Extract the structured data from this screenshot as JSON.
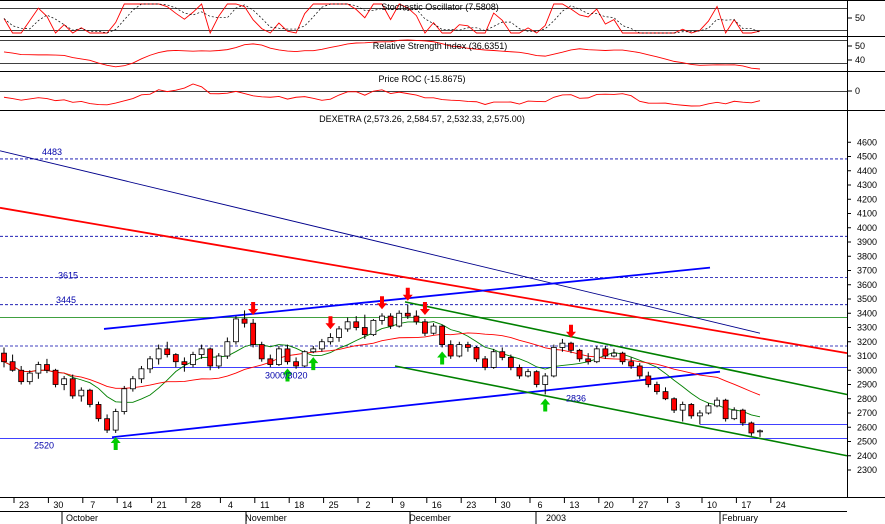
{
  "chart_data": {
    "type": "candlestick",
    "panels": [
      {
        "id": "stoch",
        "title": "Stochastic Oscillator (7.5808)",
        "yticks": [
          {
            "v": 50,
            "label": "50"
          }
        ]
      },
      {
        "id": "rsi",
        "title": "Relative Strength Index (36.6351)",
        "yticks": [
          {
            "v": 50,
            "label": "50"
          },
          {
            "v": 40,
            "label": "40"
          }
        ]
      },
      {
        "id": "roc",
        "title": "Price ROC (-15.8675)",
        "yticks": [
          {
            "v": 0,
            "label": "0"
          }
        ]
      },
      {
        "id": "price",
        "title": "DEXETRA (2,573.26, 2,584.57, 2,532.33, 2,575.00)",
        "ylim": [
          2300,
          4700
        ],
        "yticks": [
          {
            "v": 4600,
            "label": "4600"
          },
          {
            "v": 4500,
            "label": "4500"
          },
          {
            "v": 4400,
            "label": "4400"
          },
          {
            "v": 4300,
            "label": "4300"
          },
          {
            "v": 4200,
            "label": "4200"
          },
          {
            "v": 4100,
            "label": "4100"
          },
          {
            "v": 4000,
            "label": "4000"
          },
          {
            "v": 3900,
            "label": "3900"
          },
          {
            "v": 3800,
            "label": "3800"
          },
          {
            "v": 3700,
            "label": "3700"
          },
          {
            "v": 3600,
            "label": "3600"
          },
          {
            "v": 3500,
            "label": "3500"
          },
          {
            "v": 3400,
            "label": "3400"
          },
          {
            "v": 3300,
            "label": "3300"
          },
          {
            "v": 3200,
            "label": "3200"
          },
          {
            "v": 3100,
            "label": "3100"
          },
          {
            "v": 3000,
            "label": "3000"
          },
          {
            "v": 2900,
            "label": "2900"
          },
          {
            "v": 2800,
            "label": "2800"
          },
          {
            "v": 2700,
            "label": "2700"
          },
          {
            "v": 2600,
            "label": "2600"
          },
          {
            "v": 2500,
            "label": "2500"
          },
          {
            "v": 2400,
            "label": "2400"
          },
          {
            "v": 2300,
            "label": "2300"
          }
        ],
        "level_labels": [
          {
            "label": "4483",
            "v": 4483
          },
          {
            "label": "3615",
            "v": 3615
          },
          {
            "label": "3445",
            "v": 3445
          },
          {
            "label": "3000/3020",
            "v": 3000
          },
          {
            "label": "2836",
            "v": 2836
          },
          {
            "label": "2520",
            "v": 2520
          }
        ]
      }
    ],
    "x_day_ticks": [
      "23",
      "30",
      "7",
      "14",
      "21",
      "28",
      "4",
      "11",
      "18",
      "25",
      "2",
      "9",
      "16",
      "23",
      "30",
      "6",
      "13",
      "20",
      "27",
      "3",
      "10",
      "17",
      "24"
    ],
    "x_month_labels": [
      "October",
      "November",
      "December",
      "2003",
      "February"
    ],
    "candles": [
      [
        3120,
        3160,
        3020,
        3060
      ],
      [
        3060,
        3110,
        2990,
        3000
      ],
      [
        3000,
        3030,
        2900,
        2920
      ],
      [
        2920,
        3000,
        2900,
        2980
      ],
      [
        2980,
        3060,
        2940,
        3040
      ],
      [
        3040,
        3080,
        2980,
        3000
      ],
      [
        3000,
        3010,
        2880,
        2900
      ],
      [
        2900,
        2960,
        2860,
        2940
      ],
      [
        2940,
        2970,
        2800,
        2820
      ],
      [
        2820,
        2880,
        2780,
        2860
      ],
      [
        2860,
        2870,
        2740,
        2760
      ],
      [
        2760,
        2780,
        2640,
        2660
      ],
      [
        2660,
        2690,
        2560,
        2580
      ],
      [
        2580,
        2730,
        2560,
        2710
      ],
      [
        2710,
        2890,
        2690,
        2870
      ],
      [
        2870,
        2960,
        2850,
        2940
      ],
      [
        2940,
        3030,
        2910,
        3010
      ],
      [
        3010,
        3100,
        2980,
        3080
      ],
      [
        3080,
        3180,
        3040,
        3150
      ],
      [
        3150,
        3200,
        3090,
        3110
      ],
      [
        3110,
        3120,
        3020,
        3060
      ],
      [
        3060,
        3090,
        2990,
        3040
      ],
      [
        3040,
        3130,
        3020,
        3110
      ],
      [
        3110,
        3180,
        3080,
        3150
      ],
      [
        3150,
        3160,
        3000,
        3030
      ],
      [
        3030,
        3120,
        3010,
        3100
      ],
      [
        3100,
        3230,
        3080,
        3200
      ],
      [
        3200,
        3380,
        3180,
        3360
      ],
      [
        3360,
        3420,
        3300,
        3330
      ],
      [
        3330,
        3360,
        3160,
        3180
      ],
      [
        3180,
        3200,
        3060,
        3080
      ],
      [
        3080,
        3110,
        3020,
        3040
      ],
      [
        3040,
        3170,
        3030,
        3150
      ],
      [
        3150,
        3180,
        3040,
        3060
      ],
      [
        3060,
        3090,
        3010,
        3030
      ],
      [
        3030,
        3140,
        3020,
        3130
      ],
      [
        3130,
        3170,
        3120,
        3150
      ],
      [
        3150,
        3220,
        3130,
        3200
      ],
      [
        3200,
        3260,
        3180,
        3230
      ],
      [
        3230,
        3310,
        3200,
        3290
      ],
      [
        3290,
        3370,
        3270,
        3340
      ],
      [
        3340,
        3380,
        3280,
        3300
      ],
      [
        3300,
        3390,
        3220,
        3250
      ],
      [
        3250,
        3360,
        3240,
        3350
      ],
      [
        3350,
        3400,
        3320,
        3380
      ],
      [
        3380,
        3400,
        3290,
        3310
      ],
      [
        3310,
        3420,
        3300,
        3400
      ],
      [
        3400,
        3460,
        3360,
        3380
      ],
      [
        3380,
        3420,
        3320,
        3340
      ],
      [
        3340,
        3360,
        3240,
        3260
      ],
      [
        3260,
        3330,
        3250,
        3310
      ],
      [
        3310,
        3320,
        3160,
        3180
      ],
      [
        3180,
        3210,
        3080,
        3100
      ],
      [
        3100,
        3200,
        3090,
        3180
      ],
      [
        3180,
        3200,
        3130,
        3160
      ],
      [
        3160,
        3170,
        3060,
        3080
      ],
      [
        3080,
        3100,
        3000,
        3020
      ],
      [
        3020,
        3150,
        3010,
        3130
      ],
      [
        3130,
        3160,
        3070,
        3090
      ],
      [
        3090,
        3110,
        3000,
        3020
      ],
      [
        3020,
        3040,
        2940,
        2960
      ],
      [
        2960,
        3010,
        2950,
        2990
      ],
      [
        2990,
        3000,
        2880,
        2900
      ],
      [
        2900,
        2980,
        2830,
        2960
      ],
      [
        2960,
        3180,
        2950,
        3160
      ],
      [
        3160,
        3220,
        3130,
        3190
      ],
      [
        3190,
        3200,
        3120,
        3140
      ],
      [
        3140,
        3150,
        3060,
        3080
      ],
      [
        3080,
        3120,
        3040,
        3060
      ],
      [
        3060,
        3170,
        3050,
        3150
      ],
      [
        3150,
        3170,
        3080,
        3100
      ],
      [
        3100,
        3150,
        3090,
        3120
      ],
      [
        3120,
        3130,
        3040,
        3060
      ],
      [
        3060,
        3090,
        3010,
        3030
      ],
      [
        3030,
        3050,
        2940,
        2960
      ],
      [
        2960,
        2990,
        2880,
        2900
      ],
      [
        2900,
        2920,
        2830,
        2850
      ],
      [
        2850,
        2880,
        2790,
        2800
      ],
      [
        2800,
        2810,
        2700,
        2720
      ],
      [
        2720,
        2780,
        2640,
        2760
      ],
      [
        2760,
        2770,
        2660,
        2680
      ],
      [
        2680,
        2720,
        2620,
        2700
      ],
      [
        2700,
        2770,
        2690,
        2750
      ],
      [
        2750,
        2810,
        2740,
        2790
      ],
      [
        2790,
        2800,
        2640,
        2660
      ],
      [
        2660,
        2740,
        2650,
        2720
      ],
      [
        2720,
        2730,
        2610,
        2630
      ],
      [
        2630,
        2640,
        2540,
        2560
      ],
      [
        2573.26,
        2584.57,
        2532.33,
        2575.0
      ]
    ],
    "grid": true
  },
  "colors": {
    "up": "#ffffff",
    "down": "#ff0000",
    "outline": "#000000",
    "indicator": "#ff0000",
    "trend_blue": "#0000ff",
    "trend_red": "#ff0000",
    "trend_green": "#008000",
    "dotted_level": "#0000aa",
    "arrow_up": "#00cc00",
    "arrow_down": "#ff0000"
  }
}
